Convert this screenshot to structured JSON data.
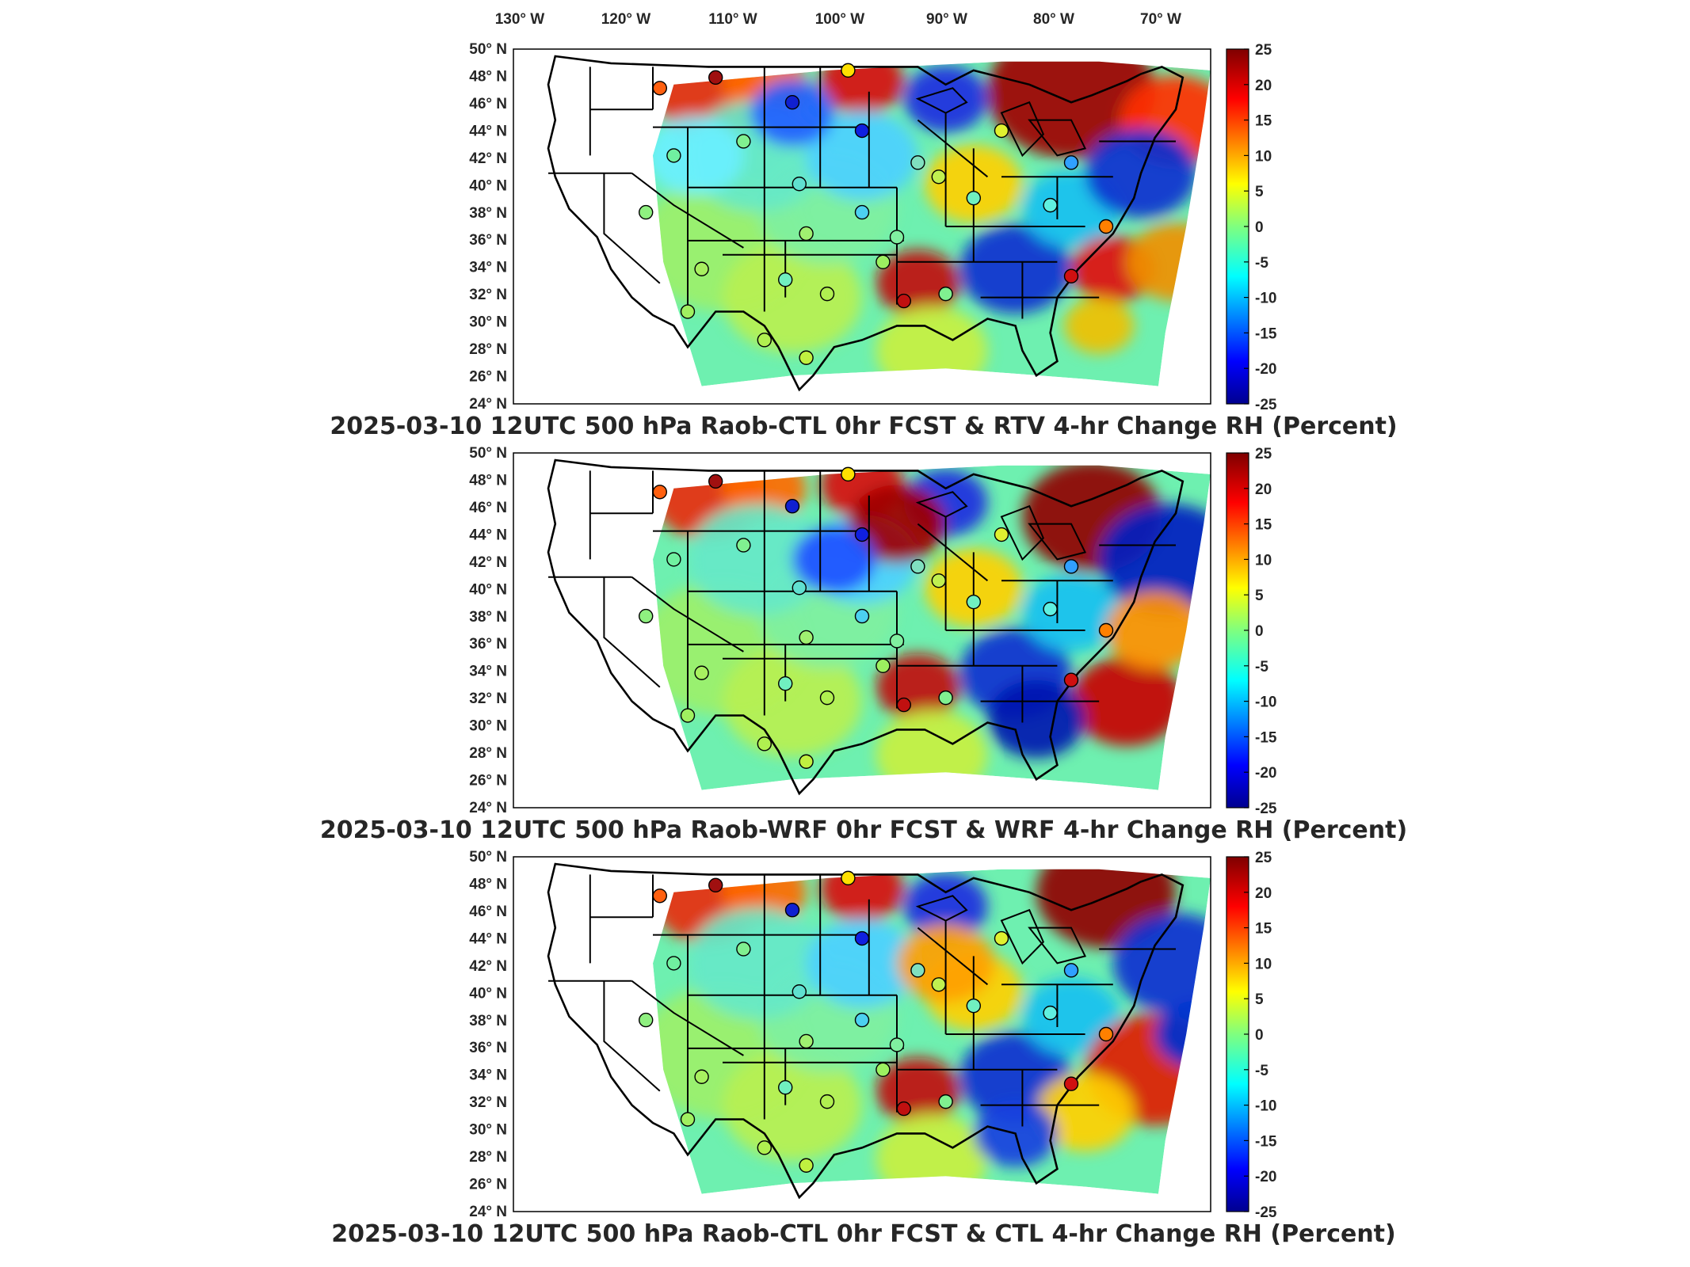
{
  "top_axis_labels": [
    "130° W",
    "120° W",
    "110° W",
    "100° W",
    "90° W",
    "80° W",
    "70° W"
  ],
  "left_axis_labels": [
    "50° N",
    "48° N",
    "46° N",
    "44° N",
    "42° N",
    "40° N",
    "38° N",
    "36° N",
    "34° N",
    "32° N",
    "30° N",
    "28° N",
    "26° N",
    "24° N"
  ],
  "colorbar_labels": [
    "25",
    "20",
    "15",
    "10",
    "5",
    "0",
    "-5",
    "-10",
    "-15",
    "-20",
    "-25"
  ],
  "colorbar_range": [
    -25,
    25
  ],
  "colors": {
    "map_outline": "#000000",
    "frame": "#000000",
    "no_data": "#ffffff"
  },
  "panels": [
    {
      "title": "2025-03-10 12UTC 500 hPa Raob-CTL 0hr FCST & RTV 4-hr Change RH (Percent)"
    },
    {
      "title": "2025-03-10 12UTC 500 hPa Raob-WRF 0hr FCST & WRF 4-hr Change RH (Percent)"
    },
    {
      "title": "2025-03-10 12UTC 500 hPa Raob-CTL 0hr FCST & CTL 4-hr Change RH (Percent)"
    }
  ]
}
